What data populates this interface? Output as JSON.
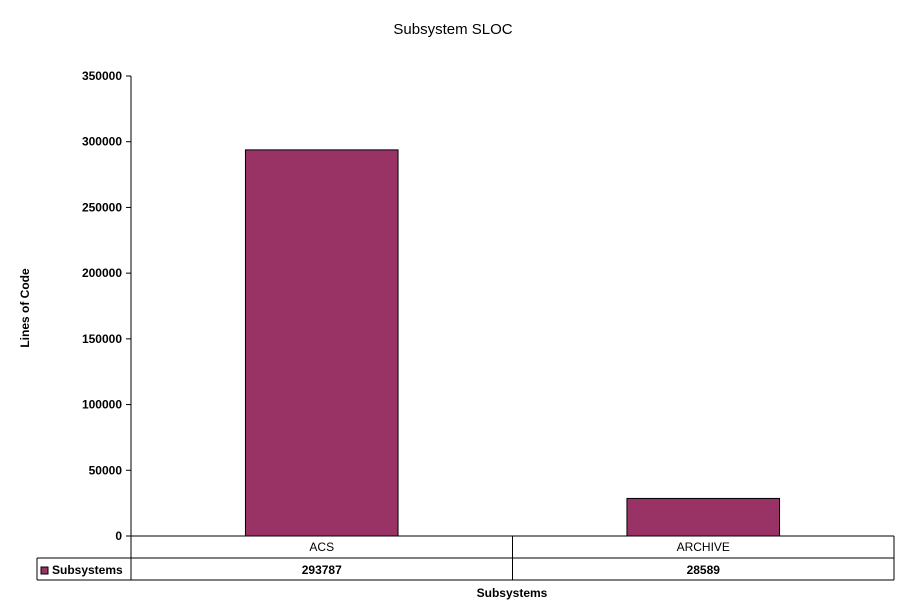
{
  "chart_data": {
    "type": "bar",
    "title": "Subsystem SLOC",
    "xlabel": "Subsystems",
    "ylabel": "Lines of Code",
    "categories": [
      "ACS",
      "ARCHIVE"
    ],
    "series": [
      {
        "name": "Subsystems",
        "values": [
          293787,
          28589
        ],
        "value_labels": [
          "293787",
          "28589"
        ],
        "color": "#993366"
      }
    ],
    "ylim": [
      0,
      350000
    ],
    "yticks": [
      0,
      50000,
      100000,
      150000,
      200000,
      250000,
      300000,
      350000
    ],
    "ytick_labels": [
      "0",
      "50000",
      "100000",
      "150000",
      "200000",
      "250000",
      "300000",
      "350000"
    ],
    "grid": false,
    "legend": "data-table-left",
    "data_table": true
  }
}
